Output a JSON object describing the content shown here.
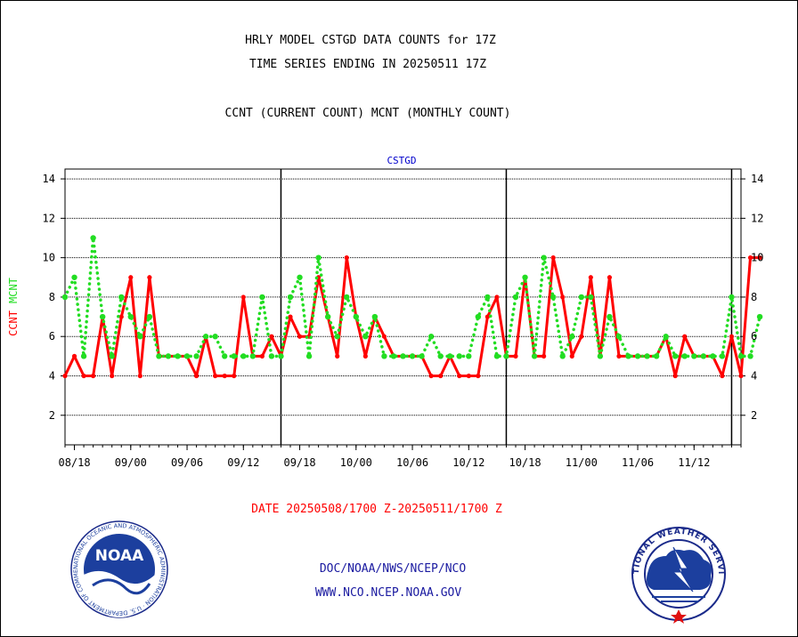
{
  "header": {
    "title_line1": "HRLY MODEL CSTGD DATA COUNTS for 17Z",
    "title_line2": "TIME SERIES ENDING IN 20250511 17Z",
    "subtitle": "CCNT (CURRENT COUNT) MCNT (MONTHLY COUNT)"
  },
  "footer": {
    "date_range": "DATE 20250508/1700 Z-20250511/1700 Z",
    "org_path": "DOC/NOAA/NWS/NCEP/NCO",
    "website": "WWW.NCO.NCEP.NOAA.GOV"
  },
  "logos": {
    "left_text": "NOAA",
    "left_ring_text": "NATIONAL OCEANIC AND ATMOSPHERIC ADMINISTRATION · U.S. DEPARTMENT OF COMMERCE",
    "right_ring_text": "NATIONAL WEATHER SERVICE"
  },
  "colors": {
    "ccnt": "#ff0000",
    "mcnt": "#22dd22",
    "title_small": "#0000cc",
    "footer_blue": "#1a1aa0",
    "date_red": "#ff0000"
  },
  "chart_data": {
    "type": "line",
    "title": "CSTGD",
    "ylabel_left_parts": [
      "CCNT",
      "MCNT"
    ],
    "ylim": [
      0.5,
      14.5
    ],
    "yticks": [
      2,
      4,
      6,
      8,
      10,
      12,
      14
    ],
    "x_tick_labels": [
      "08/18",
      "09/00",
      "09/06",
      "09/12",
      "09/18",
      "10/00",
      "10/06",
      "10/12",
      "10/18",
      "11/00",
      "11/06",
      "11/12"
    ],
    "day_boundaries_hours": [
      23,
      47,
      71
    ],
    "x_range_hours": [
      0,
      72
    ],
    "grid": true,
    "series": [
      {
        "name": "CCNT",
        "color": "#ff0000",
        "values": [
          4,
          5,
          4,
          4,
          7,
          4,
          7,
          9,
          4,
          9,
          5,
          5,
          5,
          5,
          4,
          6,
          4,
          4,
          4,
          8,
          5,
          5,
          6,
          5,
          7,
          6,
          6,
          9,
          7,
          5,
          10,
          7,
          5,
          7,
          6,
          5,
          5,
          5,
          5,
          4,
          4,
          5,
          4,
          4,
          4,
          7,
          8,
          5,
          5,
          9,
          5,
          5,
          10,
          8,
          5,
          6,
          9,
          5,
          9,
          5,
          5,
          5,
          5,
          5,
          6,
          4,
          6,
          5,
          5,
          5,
          4,
          6,
          4,
          10,
          10
        ]
      },
      {
        "name": "MCNT",
        "color": "#22dd22",
        "values": [
          8,
          9,
          5,
          11,
          7,
          5,
          8,
          7,
          6,
          7,
          5,
          5,
          5,
          5,
          5,
          6,
          6,
          5,
          5,
          5,
          5,
          8,
          5,
          5,
          8,
          9,
          5,
          10,
          7,
          6,
          8,
          7,
          6,
          7,
          5,
          5,
          5,
          5,
          5,
          6,
          5,
          5,
          5,
          5,
          7,
          8,
          5,
          5,
          8,
          9,
          5,
          10,
          8,
          5,
          6,
          8,
          8,
          5,
          7,
          6,
          5,
          5,
          5,
          5,
          6,
          5,
          5,
          5,
          5,
          5,
          5,
          8,
          5,
          5,
          7
        ]
      }
    ]
  }
}
